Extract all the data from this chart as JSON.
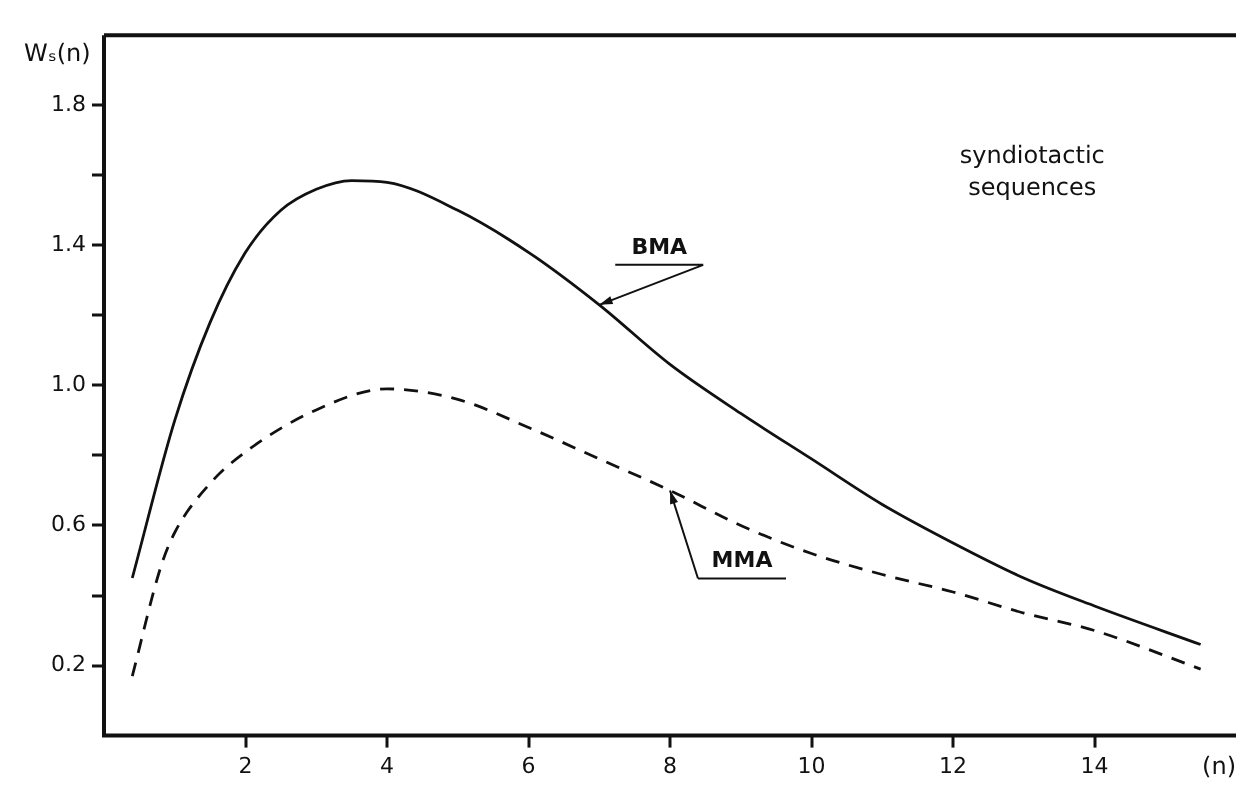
{
  "chart_data": {
    "type": "line",
    "xlabel": "(n)",
    "ylabel": "Wₛ(n)",
    "annotations": [
      "syndiotactic sequences"
    ],
    "xlim": [
      0,
      16
    ],
    "xticks": [
      2,
      4,
      6,
      8,
      10,
      12,
      14
    ],
    "ylim": [
      0,
      2.0
    ],
    "yticks": [
      {
        "value": 0.2,
        "label": "0.2"
      },
      {
        "value": 0.4,
        "label": null
      },
      {
        "value": 0.6,
        "label": "0.6"
      },
      {
        "value": 0.8,
        "label": null
      },
      {
        "value": 1.0,
        "label": "1.0"
      },
      {
        "value": 1.2,
        "label": null
      },
      {
        "value": 1.4,
        "label": "1.4"
      },
      {
        "value": 1.6,
        "label": null
      },
      {
        "value": 1.8,
        "label": "1.8"
      }
    ],
    "grid": false,
    "legend": false,
    "marker": "none",
    "series": [
      {
        "name": "BMA",
        "color": "#111111",
        "line_style": "solid",
        "x": [
          0.4,
          1,
          1.5,
          2,
          2.5,
          3,
          3.5,
          4,
          5,
          6,
          7,
          8,
          9,
          10,
          11,
          12,
          13,
          14,
          15.5
        ],
        "values": [
          0.45,
          0.9,
          1.18,
          1.38,
          1.5,
          1.56,
          1.585,
          1.58,
          1.5,
          1.38,
          1.23,
          1.06,
          0.92,
          0.79,
          0.66,
          0.55,
          0.45,
          0.37,
          0.26
        ]
      },
      {
        "name": "MMA",
        "color": "#111111",
        "line_style": "dashed",
        "x": [
          0.4,
          0.8,
          1,
          1.5,
          2,
          3,
          4,
          5,
          6,
          7,
          8,
          9,
          10,
          11,
          12,
          13,
          14,
          15.5
        ],
        "values": [
          0.17,
          0.48,
          0.58,
          0.72,
          0.81,
          0.93,
          0.99,
          0.96,
          0.88,
          0.79,
          0.7,
          0.6,
          0.52,
          0.46,
          0.41,
          0.35,
          0.3,
          0.19
        ]
      }
    ]
  }
}
